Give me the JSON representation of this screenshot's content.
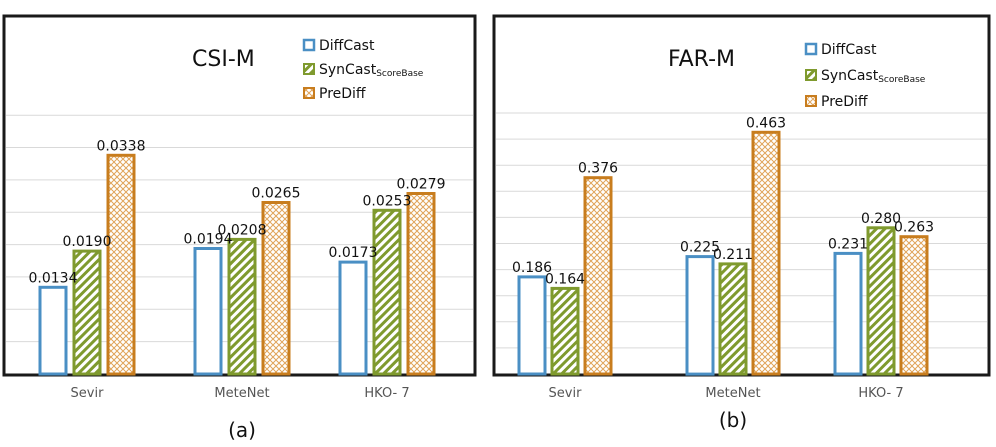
{
  "colors": {
    "diffcast": "#4a8fc4",
    "syncast": "#7f9a2e",
    "prediff": "#c87d1e",
    "grid": "#d9d9d9",
    "frame": "#1a1a1a",
    "axis_text": "#555555",
    "text": "#111111"
  },
  "chart_data": [
    {
      "type": "bar",
      "title": "CSI-M",
      "caption": "(a)",
      "categories": [
        "Sevir",
        "MeteNet",
        "HKO- 7"
      ],
      "series": [
        {
          "name": "DiffCast",
          "values": [
            0.0134,
            0.0194,
            0.0173
          ],
          "labels": [
            "0.0134",
            "0.0194",
            "0.0173"
          ]
        },
        {
          "name": "SynCast",
          "subscript": "ScoreBase",
          "values": [
            0.019,
            0.0208,
            0.0253
          ],
          "labels": [
            "0.0190",
            "0.0208",
            "0.0253"
          ]
        },
        {
          "name": "PreDiff",
          "values": [
            0.0338,
            0.0265,
            0.0279
          ],
          "labels": [
            "0.0338",
            "0.0265",
            "0.0279"
          ]
        }
      ],
      "ylim": [
        0,
        0.04
      ],
      "grid": true,
      "legend": "top-right"
    },
    {
      "type": "bar",
      "title": "FAR-M",
      "caption": "(b)",
      "categories": [
        "Sevir",
        "MeteNet",
        "HKO- 7"
      ],
      "series": [
        {
          "name": "DiffCast",
          "values": [
            0.186,
            0.225,
            0.231
          ],
          "labels": [
            "0.186",
            "0.225",
            "0.231"
          ]
        },
        {
          "name": "SynCast",
          "subscript": "ScoreBase",
          "values": [
            0.164,
            0.211,
            0.28
          ],
          "labels": [
            "0.164",
            "0.211",
            "0.280"
          ]
        },
        {
          "name": "PreDiff",
          "values": [
            0.376,
            0.463,
            0.263
          ],
          "labels": [
            "0.376",
            "0.463",
            "0.263"
          ]
        }
      ],
      "ylim": [
        0,
        0.5
      ],
      "grid": true,
      "legend": "top-right"
    }
  ]
}
